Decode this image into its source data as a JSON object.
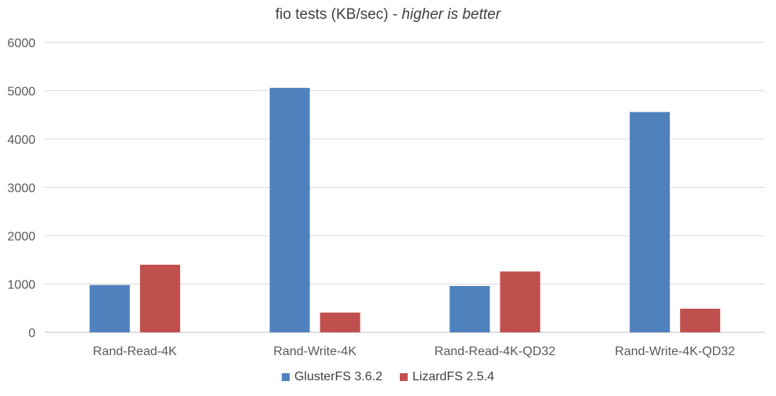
{
  "chart_data": {
    "type": "bar",
    "title": "fio tests (KB/sec) - ",
    "title_italic": "higher is better",
    "categories": [
      "Rand-Read-4K",
      "Rand-Write-4K",
      "Rand-Read-4K-QD32",
      "Rand-Write-4K-QD32"
    ],
    "series": [
      {
        "name": "GlusterFS 3.6.2",
        "color": "#4f81bd",
        "values": [
          980,
          5060,
          960,
          4560
        ]
      },
      {
        "name": "LizardFS 2.5.4",
        "color": "#c0504d",
        "values": [
          1400,
          410,
          1260,
          490
        ]
      }
    ],
    "ylim": [
      0,
      6000
    ],
    "yticks": [
      0,
      1000,
      2000,
      3000,
      4000,
      5000,
      6000
    ],
    "grid": true,
    "legend_position": "bottom"
  }
}
